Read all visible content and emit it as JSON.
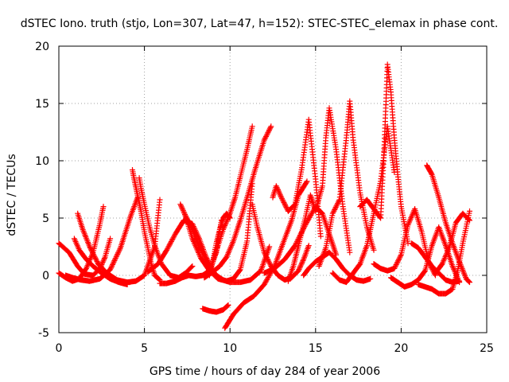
{
  "chart_data": {
    "type": "scatter",
    "title": "dSTEC Iono. truth (stjo, Lon=307, Lat=47, h=152): STEC-STEC_elemax in phase cont.",
    "xlabel": "GPS time / hours of day 284 of year 2006",
    "ylabel": "dSTEC  / TECUs",
    "xlim": [
      0,
      25
    ],
    "ylim": [
      -5,
      20
    ],
    "xticks": [
      0,
      5,
      10,
      15,
      20,
      25
    ],
    "yticks": [
      -5,
      0,
      5,
      10,
      15,
      20
    ],
    "grid": true,
    "legend": "none",
    "marker": "+",
    "color": "#ff0000",
    "series": [
      {
        "x": [
          0.0,
          0.6,
          1.1,
          1.5,
          2.0,
          2.4,
          2.7,
          3.0
        ],
        "y": [
          2.8,
          2.0,
          0.8,
          0.1,
          0.0,
          0.6,
          1.6,
          3.2
        ]
      },
      {
        "x": [
          0.0,
          0.4,
          0.8,
          1.2,
          1.6,
          2.0,
          2.4,
          2.6
        ],
        "y": [
          0.2,
          -0.2,
          -0.5,
          -0.3,
          0.6,
          2.0,
          4.5,
          6.0
        ]
      },
      {
        "x": [
          0.4,
          0.8,
          1.3,
          1.8,
          2.4,
          3.0,
          3.6,
          4.2,
          4.6
        ],
        "y": [
          0.0,
          -0.2,
          -0.4,
          -0.5,
          -0.3,
          0.5,
          2.4,
          5.2,
          6.8
        ]
      },
      {
        "x": [
          1.1,
          1.4,
          1.8,
          2.3,
          2.8,
          3.4,
          4.0,
          4.5,
          5.0,
          5.6,
          5.9
        ],
        "y": [
          5.4,
          4.0,
          2.5,
          1.0,
          0.2,
          -0.4,
          -0.6,
          -0.5,
          0.0,
          2.5,
          6.6
        ]
      },
      {
        "x": [
          0.9,
          1.2,
          1.6,
          2.0,
          2.5,
          3.0,
          3.5,
          4.0
        ],
        "y": [
          3.2,
          2.2,
          1.4,
          0.8,
          0.2,
          -0.3,
          -0.6,
          -0.8
        ]
      },
      {
        "x": [
          4.3,
          4.4,
          4.6,
          4.8,
          5.0,
          5.2,
          5.4,
          5.6,
          5.9
        ],
        "y": [
          9.2,
          8.4,
          7.0,
          5.6,
          3.8,
          2.4,
          1.0,
          0.0,
          -0.4
        ]
      },
      {
        "x": [
          4.7,
          4.8,
          5.0,
          5.3,
          5.6,
          6.0,
          6.5,
          7.0,
          7.4,
          7.8
        ],
        "y": [
          8.5,
          7.6,
          6.2,
          4.2,
          2.6,
          1.0,
          0.0,
          -0.2,
          0.2,
          0.8
        ]
      },
      {
        "x": [
          5.9,
          6.3,
          6.8,
          7.2,
          7.6,
          8.0,
          8.4,
          8.8,
          9.2,
          9.5
        ],
        "y": [
          -0.7,
          -0.7,
          -0.5,
          -0.2,
          0.0,
          -0.1,
          0.0,
          0.4,
          2.0,
          4.8
        ]
      },
      {
        "x": [
          5.2,
          5.8,
          6.3,
          6.8,
          7.3,
          7.8,
          8.2,
          8.6,
          9.0
        ],
        "y": [
          0.3,
          1.0,
          2.2,
          3.6,
          4.8,
          4.5,
          3.2,
          1.6,
          0.4
        ]
      },
      {
        "x": [
          7.1,
          7.4,
          7.8,
          8.3,
          8.8,
          9.3,
          9.8,
          10.2,
          10.6,
          11.0,
          11.3
        ],
        "y": [
          6.2,
          5.2,
          3.2,
          1.5,
          0.4,
          -0.3,
          -0.5,
          -0.3,
          0.5,
          3.0,
          8.0
        ]
      },
      {
        "x": [
          7.4,
          7.8,
          8.2,
          8.8,
          9.2,
          9.6,
          10.0,
          10.6,
          11.2,
          11.8,
          12.3
        ],
        "y": [
          5.2,
          4.0,
          2.5,
          0.8,
          0.0,
          -0.4,
          -0.6,
          -0.6,
          -0.4,
          0.4,
          2.5
        ]
      },
      {
        "x": [
          9.0,
          9.3,
          9.6,
          10.0,
          10.3,
          10.6,
          11.0,
          11.3
        ],
        "y": [
          1.2,
          2.6,
          4.0,
          5.4,
          6.8,
          8.6,
          11.0,
          13.0
        ]
      },
      {
        "x": [
          8.8,
          9.0,
          9.2,
          9.4,
          9.6,
          9.8,
          10.0
        ],
        "y": [
          0.0,
          1.2,
          2.8,
          4.0,
          5.0,
          5.4,
          5.0
        ]
      },
      {
        "x": [
          8.5,
          8.9,
          9.4,
          9.8,
          10.2,
          10.6,
          11.0,
          11.5,
          12.0,
          12.4
        ],
        "y": [
          -0.2,
          0.2,
          0.8,
          1.6,
          3.0,
          4.8,
          6.8,
          9.4,
          11.8,
          13.0
        ]
      },
      {
        "x": [
          8.4,
          8.8,
          9.2,
          9.6,
          9.9
        ],
        "y": [
          -2.9,
          -3.1,
          -3.2,
          -3.0,
          -2.6
        ]
      },
      {
        "x": [
          9.7,
          10.2,
          10.8,
          11.4,
          12.0,
          12.6,
          13.0,
          13.6,
          14.0,
          14.5
        ],
        "y": [
          -4.6,
          -3.4,
          -2.4,
          -1.8,
          -0.8,
          0.8,
          2.4,
          4.8,
          7.0,
          8.2
        ]
      },
      {
        "x": [
          11.3,
          11.6,
          12.0,
          12.4,
          12.8,
          13.2,
          13.6,
          14.0,
          14.3,
          14.6
        ],
        "y": [
          6.2,
          4.2,
          2.0,
          0.8,
          0.0,
          -0.4,
          -0.2,
          0.4,
          1.4,
          2.6
        ]
      },
      {
        "x": [
          12.5,
          12.7,
          13.0,
          13.4,
          13.8,
          14.2,
          14.6,
          15.0,
          15.3
        ],
        "y": [
          6.8,
          7.8,
          6.8,
          5.6,
          6.2,
          9.4,
          13.6,
          8.4,
          3.4
        ]
      },
      {
        "x": [
          12.0,
          12.6,
          13.2,
          13.8,
          14.4,
          15.0,
          15.4,
          15.8,
          16.2
        ],
        "y": [
          0.2,
          0.6,
          1.4,
          2.6,
          4.4,
          6.0,
          5.4,
          3.6,
          1.8
        ]
      },
      {
        "x": [
          13.4,
          13.7,
          14.0,
          14.4,
          14.7,
          15.0,
          15.4,
          15.6,
          15.8,
          16.2,
          16.6,
          17.0
        ],
        "y": [
          -0.5,
          0.8,
          2.6,
          5.0,
          7.0,
          5.6,
          7.8,
          12.0,
          14.6,
          11.0,
          6.0,
          2.0
        ]
      },
      {
        "x": [
          14.3,
          14.6,
          15.0,
          15.4,
          15.8,
          16.2,
          16.6,
          17.0,
          17.4,
          17.8,
          18.2
        ],
        "y": [
          0.0,
          0.6,
          1.2,
          1.6,
          2.0,
          1.4,
          0.6,
          0.0,
          -0.4,
          -0.5,
          -0.3
        ]
      },
      {
        "x": [
          15.2,
          15.6,
          16.0,
          16.4,
          16.8,
          17.0,
          17.2,
          17.6,
          18.0,
          18.4
        ],
        "y": [
          0.8,
          2.4,
          5.4,
          6.6,
          12.0,
          15.2,
          11.8,
          7.2,
          4.2,
          2.2
        ]
      },
      {
        "x": [
          16.0,
          16.4,
          16.8,
          17.2,
          17.6,
          18.0,
          18.4,
          18.8,
          19.2,
          19.6
        ],
        "y": [
          0.2,
          -0.4,
          -0.6,
          0.2,
          1.0,
          2.6,
          5.4,
          8.2,
          13.0,
          9.0
        ]
      },
      {
        "x": [
          17.6,
          18.0,
          18.4,
          18.8,
          19.0,
          19.2,
          19.4,
          19.6,
          19.8,
          20.0,
          20.4
        ],
        "y": [
          6.0,
          6.6,
          5.8,
          5.0,
          10.8,
          18.4,
          16.0,
          12.0,
          8.8,
          6.0,
          2.8
        ]
      },
      {
        "x": [
          18.4,
          18.8,
          19.2,
          19.6,
          20.0,
          20.4,
          20.8,
          21.2,
          21.6,
          22.0
        ],
        "y": [
          1.0,
          0.6,
          0.4,
          0.6,
          1.8,
          4.4,
          5.8,
          3.8,
          1.2,
          0.0
        ]
      },
      {
        "x": [
          19.4,
          19.8,
          20.2,
          20.6,
          21.0,
          21.4,
          21.8,
          22.2,
          22.6,
          23.0,
          23.4
        ],
        "y": [
          -0.2,
          -0.6,
          -1.0,
          -0.8,
          -0.4,
          0.4,
          2.6,
          4.2,
          2.6,
          0.8,
          -0.6
        ]
      },
      {
        "x": [
          21.5,
          21.8,
          22.2,
          22.6,
          23.0,
          23.4,
          23.8,
          24.0
        ],
        "y": [
          9.6,
          8.8,
          6.8,
          4.6,
          2.8,
          1.2,
          -0.3,
          -0.6
        ]
      },
      {
        "x": [
          21.0,
          21.4,
          21.8,
          22.2,
          22.6,
          23.0,
          23.3,
          23.6,
          24.0
        ],
        "y": [
          -0.8,
          -1.0,
          -1.2,
          -1.6,
          -1.6,
          -1.2,
          0.4,
          2.8,
          5.6
        ]
      },
      {
        "x": [
          20.6,
          21.0,
          21.4,
          21.8,
          22.2,
          22.6,
          23.0,
          23.4
        ],
        "y": [
          2.8,
          2.4,
          1.6,
          0.8,
          0.2,
          -0.4,
          -0.6,
          -0.5
        ]
      },
      {
        "x": [
          22.0,
          22.4,
          22.8,
          23.2,
          23.6,
          24.0
        ],
        "y": [
          0.2,
          1.0,
          2.4,
          4.6,
          5.4,
          4.8
        ]
      }
    ]
  }
}
